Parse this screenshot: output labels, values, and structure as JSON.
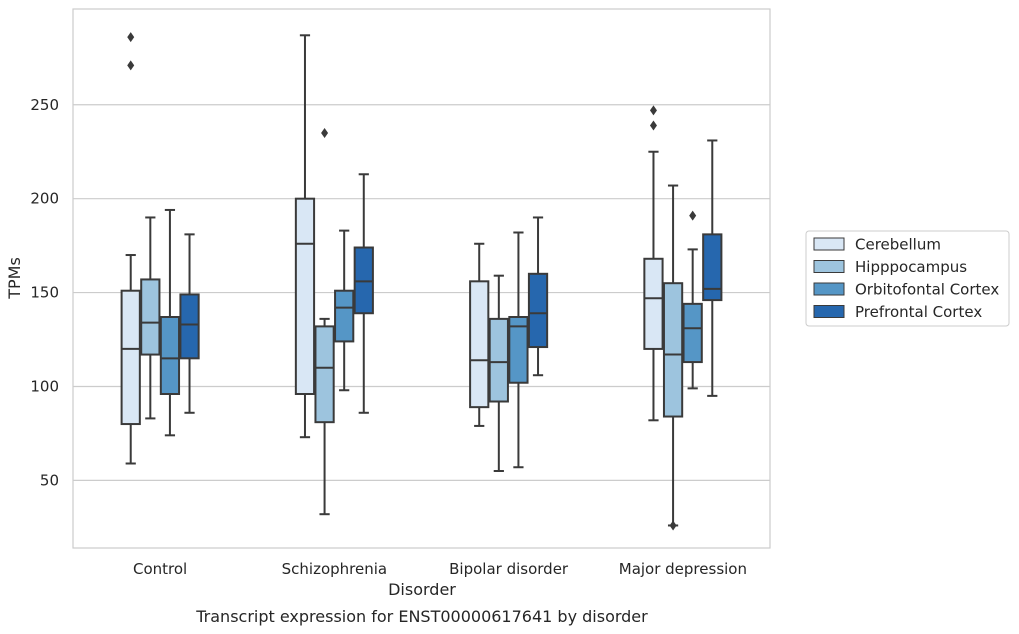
{
  "chart_data": {
    "type": "box",
    "title": "",
    "caption": "Transcript expression for ENST00000617641 by disorder",
    "xlabel": "Disorder",
    "ylabel": "TPMs",
    "ylim": [
      14,
      301
    ],
    "yticks": [
      50,
      100,
      150,
      200,
      250
    ],
    "grid": "horizontal",
    "legend_position": "right",
    "categories": [
      "Control",
      "Schizophrenia",
      "Bipolar disorder",
      "Major depression"
    ],
    "series": [
      {
        "name": "Cerebellum",
        "color": "#d9e7f5",
        "boxes": [
          {
            "whislo": 59,
            "q1": 80,
            "med": 120,
            "q3": 151,
            "whishi": 170,
            "fliers": [
              271,
              286
            ]
          },
          {
            "whislo": 73,
            "q1": 96,
            "med": 176,
            "q3": 200,
            "whishi": 287,
            "fliers": []
          },
          {
            "whislo": 79,
            "q1": 89,
            "med": 114,
            "q3": 156,
            "whishi": 176,
            "fliers": []
          },
          {
            "whislo": 82,
            "q1": 120,
            "med": 147,
            "q3": 168,
            "whishi": 225,
            "fliers": [
              239,
              247
            ]
          }
        ]
      },
      {
        "name": "Hipppocampus",
        "color": "#9dc4de",
        "boxes": [
          {
            "whislo": 83,
            "q1": 117,
            "med": 134,
            "q3": 157,
            "whishi": 190,
            "fliers": []
          },
          {
            "whislo": 32,
            "q1": 81,
            "med": 110,
            "q3": 132,
            "whishi": 136,
            "fliers": [
              235
            ]
          },
          {
            "whislo": 55,
            "q1": 92,
            "med": 113,
            "q3": 136,
            "whishi": 159,
            "fliers": []
          },
          {
            "whislo": 26,
            "q1": 84,
            "med": 117,
            "q3": 155,
            "whishi": 207,
            "fliers": [
              26
            ]
          }
        ]
      },
      {
        "name": "Orbitofontal Cortex",
        "color": "#5596c6",
        "boxes": [
          {
            "whislo": 74,
            "q1": 96,
            "med": 115,
            "q3": 137,
            "whishi": 194,
            "fliers": []
          },
          {
            "whislo": 98,
            "q1": 124,
            "med": 142,
            "q3": 151,
            "whishi": 183,
            "fliers": []
          },
          {
            "whislo": 57,
            "q1": 102,
            "med": 132,
            "q3": 137,
            "whishi": 182,
            "fliers": []
          },
          {
            "whislo": 99,
            "q1": 113,
            "med": 131,
            "q3": 144,
            "whishi": 173,
            "fliers": [
              191
            ]
          }
        ]
      },
      {
        "name": "Prefrontal Cortex",
        "color": "#2667ae",
        "boxes": [
          {
            "whislo": 86,
            "q1": 115,
            "med": 133,
            "q3": 149,
            "whishi": 181,
            "fliers": []
          },
          {
            "whislo": 86,
            "q1": 139,
            "med": 156,
            "q3": 174,
            "whishi": 213,
            "fliers": []
          },
          {
            "whislo": 106,
            "q1": 121,
            "med": 139,
            "q3": 160,
            "whishi": 190,
            "fliers": []
          },
          {
            "whislo": 95,
            "q1": 146,
            "med": 152,
            "q3": 181,
            "whishi": 231,
            "fliers": []
          }
        ]
      }
    ]
  }
}
